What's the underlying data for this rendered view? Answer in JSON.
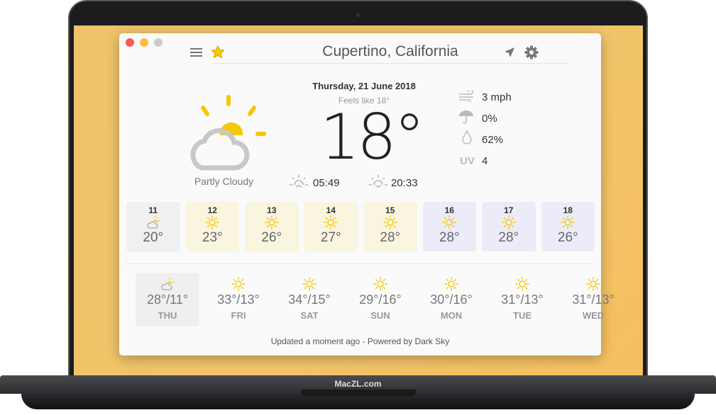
{
  "brand": "MacZL.com",
  "header": {
    "city": "Cupertino, California"
  },
  "current": {
    "date": "Thursday, 21 June 2018",
    "feels_like": "Feels like 18°",
    "temperature": "18°",
    "condition": "Partly Cloudy",
    "sunrise": "05:49",
    "sunset": "20:33",
    "wind": "3 mph",
    "precip": "0%",
    "humidity": "62%",
    "uv_label": "UV",
    "uv": "4"
  },
  "hourly": [
    {
      "hour": "11",
      "icon": "partly-cloudy",
      "temp": "20°",
      "bg": "#f0f0f0"
    },
    {
      "hour": "12",
      "icon": "sun",
      "temp": "23°",
      "bg": "#faf5df"
    },
    {
      "hour": "13",
      "icon": "sun",
      "temp": "26°",
      "bg": "#faf5df"
    },
    {
      "hour": "14",
      "icon": "sun",
      "temp": "27°",
      "bg": "#faf5df"
    },
    {
      "hour": "15",
      "icon": "sun",
      "temp": "28°",
      "bg": "#faf5df"
    },
    {
      "hour": "16",
      "icon": "sun",
      "temp": "28°",
      "bg": "#ececf8"
    },
    {
      "hour": "17",
      "icon": "sun",
      "temp": "28°",
      "bg": "#ececf8"
    },
    {
      "hour": "18",
      "icon": "sun",
      "temp": "26°",
      "bg": "#ececf8"
    }
  ],
  "daily": [
    {
      "day": "THU",
      "icon": "partly-cloudy",
      "temp": "28°/11°",
      "selected": true
    },
    {
      "day": "FRI",
      "icon": "sun",
      "temp": "33°/13°"
    },
    {
      "day": "SAT",
      "icon": "sun",
      "temp": "34°/15°"
    },
    {
      "day": "SUN",
      "icon": "sun",
      "temp": "29°/16°"
    },
    {
      "day": "MON",
      "icon": "sun",
      "temp": "30°/16°"
    },
    {
      "day": "TUE",
      "icon": "sun",
      "temp": "31°/13°"
    },
    {
      "day": "WED",
      "icon": "sun",
      "temp": "31°/13°"
    }
  ],
  "footer": "Updated a moment ago - Powered by Dark Sky",
  "colors": {
    "accent": "#f5c800",
    "close": "#fc5753",
    "minimize": "#fdbc40",
    "zoom": "#cccccc"
  }
}
